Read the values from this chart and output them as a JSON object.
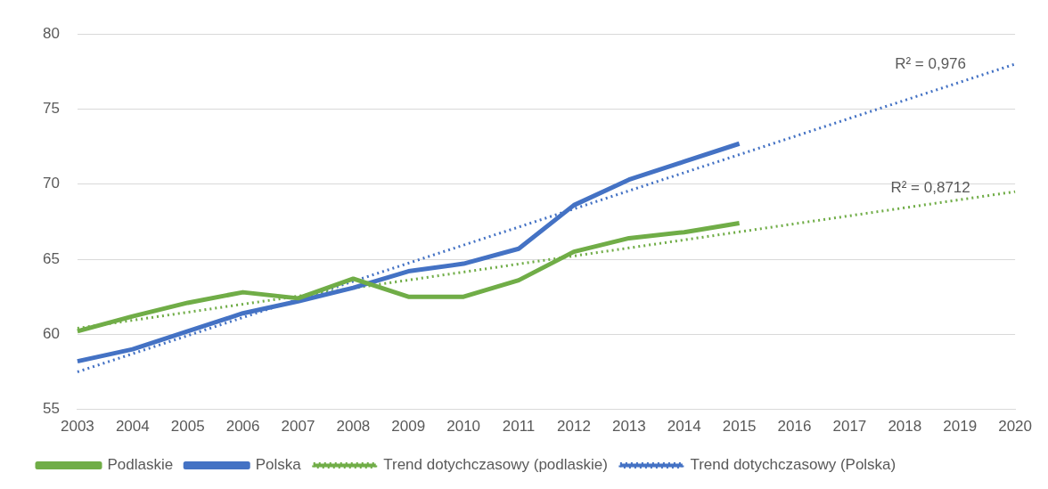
{
  "chart_data": {
    "type": "line",
    "categories": [
      "2003",
      "2004",
      "2005",
      "2006",
      "2007",
      "2008",
      "2009",
      "2010",
      "2011",
      "2012",
      "2013",
      "2014",
      "2015",
      "2016",
      "2017",
      "2018",
      "2019",
      "2020"
    ],
    "series": [
      {
        "name": "Podlaskie",
        "color": "#70ad47",
        "values": [
          60.2,
          61.2,
          62.1,
          62.8,
          62.4,
          63.7,
          62.5,
          62.5,
          63.6,
          65.5,
          66.4,
          66.8,
          67.4,
          null,
          null,
          null,
          null,
          null
        ]
      },
      {
        "name": "Polska",
        "color": "#4472c4",
        "values": [
          58.2,
          59.0,
          60.2,
          61.4,
          62.2,
          63.1,
          64.2,
          64.7,
          65.7,
          68.6,
          70.3,
          71.5,
          72.7,
          null,
          null,
          null,
          null,
          null
        ]
      },
      {
        "name": "Trend dotychczasowy (podlaskie)",
        "color": "#70ad47",
        "line_style": "dotted",
        "values": [
          60.4,
          null,
          null,
          null,
          null,
          null,
          null,
          null,
          null,
          null,
          null,
          null,
          null,
          null,
          null,
          null,
          null,
          69.5
        ]
      },
      {
        "name": "Trend dotychczasowy (Polska)",
        "color": "#4472c4",
        "line_style": "dotted",
        "values": [
          57.5,
          null,
          null,
          null,
          null,
          null,
          null,
          null,
          null,
          null,
          null,
          null,
          null,
          null,
          null,
          null,
          null,
          78.0
        ]
      }
    ],
    "ylim": [
      55,
      80
    ],
    "yticks": [
      55,
      60,
      65,
      70,
      75,
      80
    ],
    "grid": "y",
    "legend": "bottom",
    "marker": "none",
    "line_style": "solid",
    "annotations": [
      "R² = 0,976",
      "R² = 0,8712"
    ]
  }
}
